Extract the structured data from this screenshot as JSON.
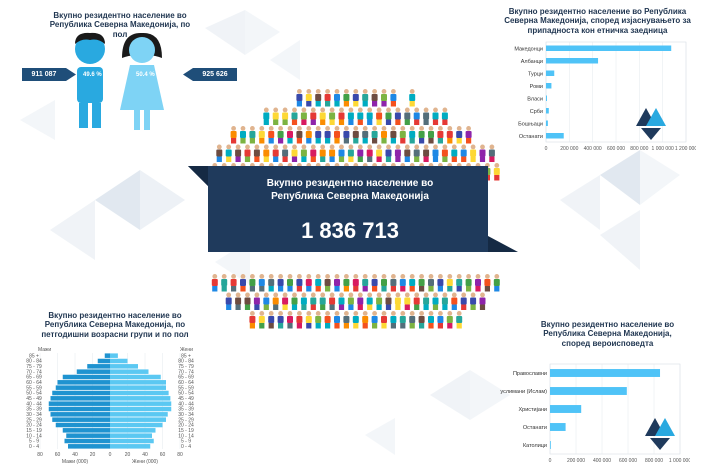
{
  "colors": {
    "navy": "#1f3550",
    "accent": "#29a9e0",
    "bar": "#4fc3f7",
    "male_bar": "#1f93d0",
    "female_bar": "#5bc8f2"
  },
  "gender": {
    "title": "Вкупно резидентно население во Република Северна Македонија, по пол",
    "male_value": "911 087",
    "male_pct": "49.6 %",
    "female_pct": "50.4 %",
    "female_value": "925 626"
  },
  "center": {
    "title": "Вкупно резидентно население во Република Северна Македонија",
    "total": "1 836 713"
  },
  "chart_data": [
    {
      "type": "bar",
      "title": "Вкупно резидентно население во Република Северна Македонија, според изјаснувањето за припадноста кон етничка заедница",
      "categories": [
        "Македонци",
        "Албанци",
        "Турци",
        "Роми",
        "Власи",
        "Срби",
        "Бошњаци",
        "Останати"
      ],
      "values": [
        1073375,
        446245,
        70700,
        46433,
        8169,
        23847,
        16042,
        152002
      ],
      "xticks": [
        "0",
        "200 000",
        "400 000",
        "600 000",
        "800 000",
        "1 000 000",
        "1 200 000"
      ],
      "xlim": [
        0,
        1200000
      ],
      "grid": true
    },
    {
      "type": "bar",
      "title": "Вкупно резидентно население во Република Северна Македонија, според вероисповедта",
      "categories": [
        "Православни",
        "Муслимани (Ислам)",
        "Христијани",
        "Останати",
        "Католици"
      ],
      "values": [
        846395,
        590878,
        240000,
        120000,
        6000
      ],
      "xticks": [
        "0",
        "200 000",
        "400 000",
        "600 000",
        "800 000",
        "1 000 000"
      ],
      "xlim": [
        0,
        1000000
      ],
      "grid": true
    },
    {
      "type": "bar",
      "title": "Вкупно резидентно население во Република Северна Македонија, по петгодишни возрасни групи и по пол",
      "left_label": "Мажи",
      "right_label": "Жени",
      "categories": [
        "0 - 4",
        "5 - 9",
        "10 - 14",
        "15 - 19",
        "20 - 24",
        "25 - 29",
        "30 - 34",
        "35 - 39",
        "40 - 44",
        "45 - 49",
        "50 - 54",
        "55 - 59",
        "60 - 64",
        "65 - 69",
        "70 - 74",
        "75 - 79",
        "80 - 84",
        "85 +"
      ],
      "series": [
        {
          "name": "Мажи",
          "values": [
            48,
            52,
            50,
            54,
            62,
            66,
            68,
            70,
            70,
            68,
            66,
            62,
            60,
            54,
            38,
            26,
            14,
            6
          ]
        },
        {
          "name": "Жени",
          "values": [
            46,
            50,
            48,
            52,
            60,
            64,
            66,
            70,
            70,
            69,
            67,
            64,
            64,
            58,
            44,
            32,
            20,
            9
          ]
        }
      ],
      "xticks": [
        "80",
        "60",
        "40",
        "20",
        "0",
        "20",
        "40",
        "60",
        "80"
      ],
      "xlabels": [
        "Мажи",
        "Жени"
      ],
      "xunit": "(000)",
      "xlim": [
        0,
        80
      ]
    }
  ]
}
